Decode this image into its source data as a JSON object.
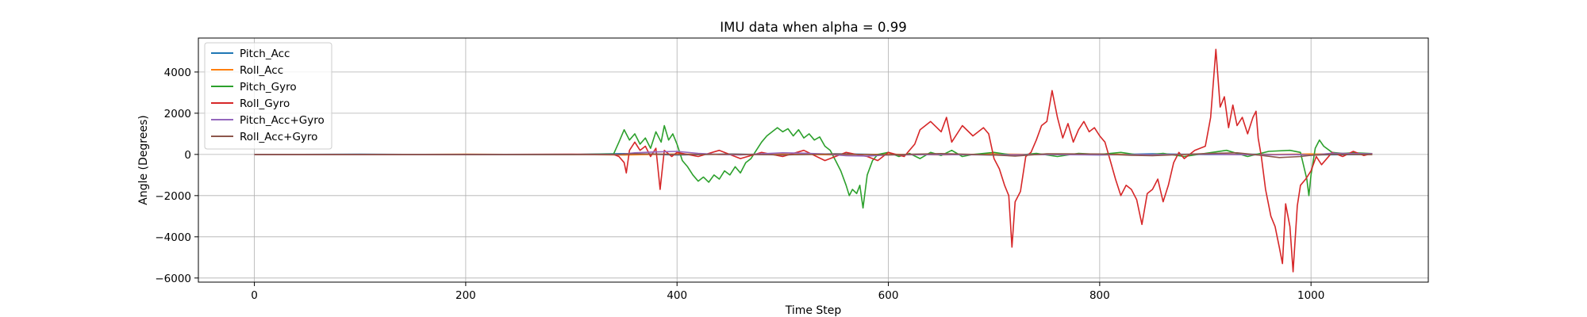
{
  "chart_data": {
    "type": "line",
    "title": "IMU data when alpha = 0.99",
    "xlabel": "Time Step",
    "ylabel": "Angle (Degrees)",
    "xlim": [
      -53,
      1111
    ],
    "ylim": [
      -6200,
      5650
    ],
    "xticks": [
      0,
      200,
      400,
      600,
      800,
      1000
    ],
    "yticks": [
      -6000,
      -4000,
      -2000,
      0,
      2000,
      4000
    ],
    "grid": true,
    "legend_position": "upper left",
    "series": [
      {
        "name": "Pitch_Acc",
        "color": "#1f77b4",
        "points": [
          [
            0,
            0
          ],
          [
            100,
            10
          ],
          [
            200,
            -10
          ],
          [
            300,
            0
          ],
          [
            350,
            40
          ],
          [
            400,
            -30
          ],
          [
            450,
            20
          ],
          [
            500,
            -20
          ],
          [
            550,
            30
          ],
          [
            600,
            -10
          ],
          [
            650,
            20
          ],
          [
            700,
            -30
          ],
          [
            750,
            10
          ],
          [
            800,
            -20
          ],
          [
            850,
            30
          ],
          [
            900,
            -10
          ],
          [
            950,
            10
          ],
          [
            1000,
            -20
          ],
          [
            1058,
            0
          ]
        ]
      },
      {
        "name": "Roll_Acc",
        "color": "#ff7f0e",
        "points": [
          [
            0,
            0
          ],
          [
            100,
            -10
          ],
          [
            200,
            10
          ],
          [
            300,
            -5
          ],
          [
            350,
            -30
          ],
          [
            400,
            20
          ],
          [
            450,
            -10
          ],
          [
            500,
            20
          ],
          [
            550,
            -20
          ],
          [
            600,
            10
          ],
          [
            650,
            -20
          ],
          [
            700,
            20
          ],
          [
            750,
            -10
          ],
          [
            800,
            20
          ],
          [
            850,
            -20
          ],
          [
            900,
            10
          ],
          [
            950,
            -10
          ],
          [
            1000,
            20
          ],
          [
            1058,
            0
          ]
        ]
      },
      {
        "name": "Pitch_Gyro",
        "color": "#2ca02c",
        "points": [
          [
            0,
            0
          ],
          [
            100,
            0
          ],
          [
            200,
            0
          ],
          [
            300,
            0
          ],
          [
            340,
            20
          ],
          [
            345,
            600
          ],
          [
            350,
            1200
          ],
          [
            355,
            700
          ],
          [
            360,
            1000
          ],
          [
            365,
            500
          ],
          [
            370,
            800
          ],
          [
            375,
            300
          ],
          [
            380,
            1100
          ],
          [
            385,
            600
          ],
          [
            388,
            1400
          ],
          [
            392,
            700
          ],
          [
            396,
            1000
          ],
          [
            400,
            500
          ],
          [
            405,
            -300
          ],
          [
            410,
            -600
          ],
          [
            415,
            -1000
          ],
          [
            420,
            -1300
          ],
          [
            425,
            -1100
          ],
          [
            430,
            -1350
          ],
          [
            435,
            -1000
          ],
          [
            440,
            -1200
          ],
          [
            445,
            -800
          ],
          [
            450,
            -1000
          ],
          [
            455,
            -600
          ],
          [
            460,
            -900
          ],
          [
            465,
            -400
          ],
          [
            470,
            -200
          ],
          [
            475,
            200
          ],
          [
            480,
            600
          ],
          [
            485,
            900
          ],
          [
            490,
            1100
          ],
          [
            495,
            1300
          ],
          [
            500,
            1100
          ],
          [
            505,
            1250
          ],
          [
            510,
            900
          ],
          [
            515,
            1200
          ],
          [
            520,
            800
          ],
          [
            525,
            1000
          ],
          [
            530,
            700
          ],
          [
            535,
            850
          ],
          [
            540,
            400
          ],
          [
            545,
            200
          ],
          [
            550,
            -300
          ],
          [
            555,
            -800
          ],
          [
            560,
            -1500
          ],
          [
            563,
            -2000
          ],
          [
            566,
            -1700
          ],
          [
            570,
            -1900
          ],
          [
            573,
            -1500
          ],
          [
            576,
            -2600
          ],
          [
            580,
            -1000
          ],
          [
            585,
            -300
          ],
          [
            590,
            0
          ],
          [
            600,
            100
          ],
          [
            610,
            -100
          ],
          [
            620,
            50
          ],
          [
            630,
            -200
          ],
          [
            640,
            100
          ],
          [
            650,
            -50
          ],
          [
            660,
            200
          ],
          [
            670,
            -100
          ],
          [
            680,
            0
          ],
          [
            700,
            100
          ],
          [
            720,
            -50
          ],
          [
            740,
            50
          ],
          [
            760,
            -100
          ],
          [
            780,
            50
          ],
          [
            800,
            0
          ],
          [
            820,
            100
          ],
          [
            840,
            -50
          ],
          [
            860,
            50
          ],
          [
            880,
            -100
          ],
          [
            900,
            50
          ],
          [
            920,
            200
          ],
          [
            940,
            -100
          ],
          [
            960,
            150
          ],
          [
            980,
            200
          ],
          [
            990,
            100
          ],
          [
            996,
            -1200
          ],
          [
            998,
            -2000
          ],
          [
            1000,
            -1000
          ],
          [
            1004,
            300
          ],
          [
            1008,
            700
          ],
          [
            1012,
            400
          ],
          [
            1020,
            100
          ],
          [
            1030,
            50
          ],
          [
            1040,
            80
          ],
          [
            1050,
            60
          ],
          [
            1058,
            40
          ]
        ]
      },
      {
        "name": "Roll_Gyro",
        "color": "#d62728",
        "points": [
          [
            0,
            0
          ],
          [
            100,
            0
          ],
          [
            200,
            0
          ],
          [
            300,
            10
          ],
          [
            340,
            0
          ],
          [
            345,
            -100
          ],
          [
            350,
            -400
          ],
          [
            352,
            -900
          ],
          [
            355,
            200
          ],
          [
            360,
            600
          ],
          [
            365,
            200
          ],
          [
            370,
            400
          ],
          [
            375,
            -100
          ],
          [
            380,
            300
          ],
          [
            384,
            -1700
          ],
          [
            388,
            200
          ],
          [
            395,
            -100
          ],
          [
            400,
            100
          ],
          [
            420,
            -100
          ],
          [
            440,
            200
          ],
          [
            460,
            -200
          ],
          [
            480,
            100
          ],
          [
            500,
            -100
          ],
          [
            520,
            200
          ],
          [
            540,
            -300
          ],
          [
            560,
            100
          ],
          [
            580,
            -100
          ],
          [
            590,
            -300
          ],
          [
            600,
            100
          ],
          [
            615,
            -100
          ],
          [
            625,
            500
          ],
          [
            630,
            1200
          ],
          [
            640,
            1600
          ],
          [
            650,
            1100
          ],
          [
            655,
            1800
          ],
          [
            660,
            600
          ],
          [
            670,
            1400
          ],
          [
            680,
            900
          ],
          [
            690,
            1300
          ],
          [
            695,
            1000
          ],
          [
            700,
            -200
          ],
          [
            705,
            -700
          ],
          [
            710,
            -1500
          ],
          [
            714,
            -2000
          ],
          [
            717,
            -4500
          ],
          [
            720,
            -2300
          ],
          [
            725,
            -1800
          ],
          [
            730,
            -100
          ],
          [
            735,
            100
          ],
          [
            740,
            700
          ],
          [
            745,
            1400
          ],
          [
            750,
            1600
          ],
          [
            755,
            3100
          ],
          [
            760,
            1800
          ],
          [
            765,
            800
          ],
          [
            770,
            1500
          ],
          [
            775,
            600
          ],
          [
            780,
            1200
          ],
          [
            785,
            1600
          ],
          [
            790,
            1100
          ],
          [
            795,
            1300
          ],
          [
            800,
            900
          ],
          [
            805,
            600
          ],
          [
            810,
            -300
          ],
          [
            815,
            -1200
          ],
          [
            820,
            -2000
          ],
          [
            825,
            -1500
          ],
          [
            830,
            -1700
          ],
          [
            835,
            -2200
          ],
          [
            840,
            -3400
          ],
          [
            845,
            -1900
          ],
          [
            850,
            -1700
          ],
          [
            855,
            -1200
          ],
          [
            860,
            -2300
          ],
          [
            865,
            -1500
          ],
          [
            870,
            -400
          ],
          [
            875,
            100
          ],
          [
            880,
            -200
          ],
          [
            890,
            200
          ],
          [
            900,
            400
          ],
          [
            905,
            1800
          ],
          [
            908,
            3800
          ],
          [
            910,
            5100
          ],
          [
            914,
            2300
          ],
          [
            918,
            2800
          ],
          [
            922,
            1300
          ],
          [
            926,
            2400
          ],
          [
            930,
            1400
          ],
          [
            935,
            1800
          ],
          [
            940,
            1000
          ],
          [
            945,
            1800
          ],
          [
            948,
            2100
          ],
          [
            950,
            800
          ],
          [
            953,
            -100
          ],
          [
            957,
            -1700
          ],
          [
            962,
            -3000
          ],
          [
            966,
            -3500
          ],
          [
            970,
            -4500
          ],
          [
            973,
            -5300
          ],
          [
            976,
            -2400
          ],
          [
            980,
            -3500
          ],
          [
            983,
            -5700
          ],
          [
            987,
            -2500
          ],
          [
            990,
            -1500
          ],
          [
            995,
            -1200
          ],
          [
            1000,
            -800
          ],
          [
            1005,
            -100
          ],
          [
            1010,
            -500
          ],
          [
            1020,
            100
          ],
          [
            1030,
            -100
          ],
          [
            1040,
            150
          ],
          [
            1050,
            -50
          ],
          [
            1058,
            50
          ]
        ]
      },
      {
        "name": "Pitch_Acc+Gyro",
        "color": "#9467bd",
        "points": [
          [
            0,
            0
          ],
          [
            300,
            0
          ],
          [
            345,
            0
          ],
          [
            360,
            80
          ],
          [
            380,
            120
          ],
          [
            400,
            150
          ],
          [
            420,
            50
          ],
          [
            440,
            0
          ],
          [
            460,
            -20
          ],
          [
            480,
            30
          ],
          [
            500,
            80
          ],
          [
            520,
            60
          ],
          [
            540,
            20
          ],
          [
            560,
            -60
          ],
          [
            580,
            -80
          ],
          [
            600,
            -20
          ],
          [
            650,
            -10
          ],
          [
            700,
            -20
          ],
          [
            750,
            -10
          ],
          [
            800,
            -20
          ],
          [
            850,
            -10
          ],
          [
            900,
            10
          ],
          [
            950,
            -20
          ],
          [
            990,
            -10
          ],
          [
            1000,
            -40
          ],
          [
            1020,
            60
          ],
          [
            1040,
            40
          ],
          [
            1058,
            30
          ]
        ]
      },
      {
        "name": "Roll_Acc+Gyro",
        "color": "#8c564b",
        "points": [
          [
            0,
            0
          ],
          [
            300,
            0
          ],
          [
            345,
            0
          ],
          [
            360,
            30
          ],
          [
            380,
            20
          ],
          [
            400,
            -10
          ],
          [
            450,
            10
          ],
          [
            500,
            -20
          ],
          [
            550,
            20
          ],
          [
            600,
            -20
          ],
          [
            650,
            40
          ],
          [
            700,
            -30
          ],
          [
            720,
            -80
          ],
          [
            750,
            30
          ],
          [
            800,
            20
          ],
          [
            830,
            -40
          ],
          [
            850,
            -60
          ],
          [
            900,
            40
          ],
          [
            930,
            80
          ],
          [
            950,
            -30
          ],
          [
            970,
            -150
          ],
          [
            990,
            -100
          ],
          [
            1000,
            -40
          ],
          [
            1020,
            10
          ],
          [
            1058,
            0
          ]
        ]
      }
    ]
  }
}
